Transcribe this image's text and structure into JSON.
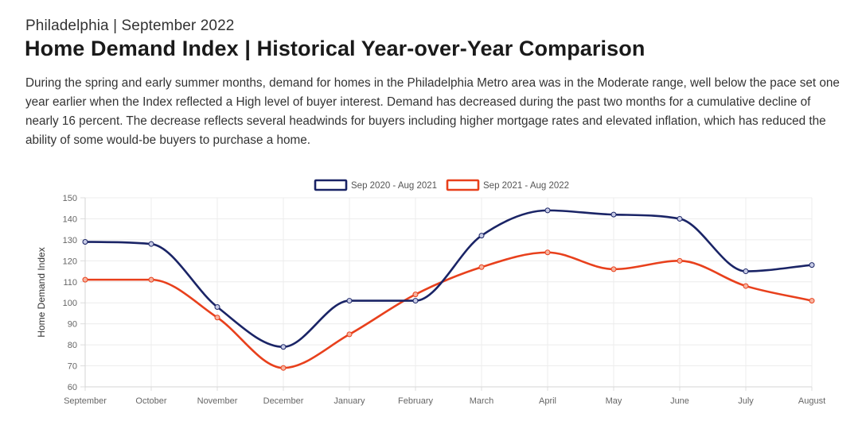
{
  "header": {
    "subtitle": "Philadelphia | September 2022",
    "title": "Home Demand Index | Historical Year-over-Year Comparison",
    "description": "During the spring and early summer months, demand for homes in the Philadelphia Metro area was in the Moderate range, well below the pace set one year earlier when the Index reflected a High level of buyer interest. Demand has decreased during the past two months for a cumulative decline of nearly 16 percent. The decrease reflects several headwinds for buyers including higher mortgage rates and elevated inflation, which has reduced the ability of some would-be buyers to purchase a home."
  },
  "chart_data": {
    "type": "line",
    "categories": [
      "September",
      "October",
      "November",
      "December",
      "January",
      "February",
      "March",
      "April",
      "May",
      "June",
      "July",
      "August"
    ],
    "series": [
      {
        "name": "Sep 2020 - Aug 2021",
        "color": "#1a2466",
        "values": [
          129,
          128,
          98,
          79,
          101,
          101,
          132,
          144,
          142,
          140,
          115,
          118
        ]
      },
      {
        "name": "Sep 2021 - Aug 2022",
        "color": "#e8401c",
        "values": [
          111,
          111,
          93,
          69,
          85,
          104,
          117,
          124,
          116,
          120,
          108,
          101
        ]
      }
    ],
    "xlabel": "",
    "ylabel": "Home Demand Index",
    "ylim": [
      60,
      150
    ],
    "yticks": [
      60,
      70,
      80,
      90,
      100,
      110,
      120,
      130,
      140,
      150
    ],
    "grid": true,
    "legend": "top-center"
  }
}
